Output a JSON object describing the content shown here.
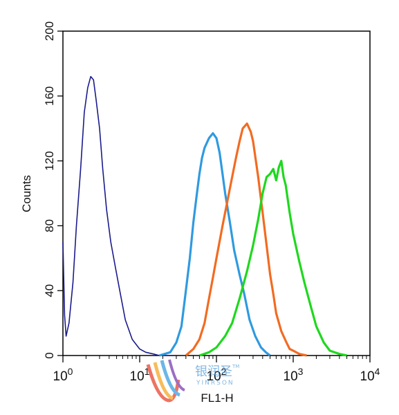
{
  "chart_data": {
    "type": "line",
    "subtype": "flow-cytometry-histogram",
    "title": "",
    "xlabel": "FL1-H",
    "ylabel": "Counts",
    "x_scale": "log",
    "xlim": [
      1,
      10000
    ],
    "ylim": [
      0,
      200
    ],
    "x_ticks": [
      {
        "value": 1,
        "base": "10",
        "exp": "0"
      },
      {
        "value": 10,
        "base": "10",
        "exp": "1"
      },
      {
        "value": 100,
        "base": "10",
        "exp": "2"
      },
      {
        "value": 1000,
        "base": "10",
        "exp": "3"
      },
      {
        "value": 10000,
        "base": "10",
        "exp": "4"
      }
    ],
    "y_ticks": [
      "0",
      "40",
      "80",
      "120",
      "160",
      "200"
    ],
    "grid": false,
    "legend": null,
    "series": [
      {
        "color": "#1a1a8c",
        "x": [
          1,
          1.05,
          1.1,
          1.2,
          1.35,
          1.5,
          1.7,
          1.9,
          2.1,
          2.3,
          2.5,
          2.7,
          3.0,
          3.3,
          3.7,
          4.2,
          4.8,
          5.5,
          6.5,
          8,
          10,
          12,
          15,
          18,
          22,
          27
        ],
        "y": [
          70,
          25,
          12,
          20,
          45,
          80,
          115,
          150,
          165,
          172,
          170,
          158,
          140,
          115,
          90,
          70,
          55,
          40,
          22,
          10,
          4,
          2,
          1,
          0,
          0,
          0
        ]
      },
      {
        "color": "#2f9ae0",
        "x": [
          18,
          25,
          30,
          35,
          40,
          45,
          50,
          55,
          60,
          65,
          70,
          80,
          90,
          100,
          110,
          120,
          130,
          150,
          170,
          200,
          230,
          270,
          320,
          380,
          440,
          500
        ],
        "y": [
          0,
          2,
          8,
          18,
          40,
          60,
          82,
          98,
          112,
          122,
          128,
          134,
          137,
          134,
          125,
          112,
          100,
          82,
          65,
          50,
          38,
          22,
          12,
          5,
          2,
          0
        ]
      },
      {
        "color": "#f26b21",
        "x": [
          40,
          50,
          60,
          70,
          80,
          90,
          100,
          120,
          140,
          160,
          180,
          200,
          220,
          250,
          280,
          300,
          350,
          400,
          450,
          500,
          550,
          600,
          700,
          800,
          900,
          1000,
          1200,
          1500
        ],
        "y": [
          0,
          4,
          10,
          20,
          35,
          48,
          60,
          80,
          96,
          110,
          122,
          132,
          140,
          143,
          138,
          132,
          110,
          88,
          68,
          50,
          38,
          26,
          15,
          9,
          4,
          3,
          1,
          0
        ]
      },
      {
        "color": "#1ed81e",
        "x": [
          60,
          80,
          100,
          130,
          160,
          200,
          250,
          300,
          350,
          400,
          450,
          500,
          550,
          600,
          650,
          700,
          750,
          800,
          900,
          1000,
          1200,
          1400,
          1700,
          2000,
          2500,
          3000,
          4000,
          5000
        ],
        "y": [
          0,
          2,
          5,
          12,
          20,
          35,
          52,
          68,
          84,
          100,
          110,
          112,
          115,
          108,
          116,
          120,
          110,
          105,
          88,
          75,
          58,
          45,
          30,
          18,
          8,
          3,
          1,
          0
        ]
      }
    ]
  }
}
